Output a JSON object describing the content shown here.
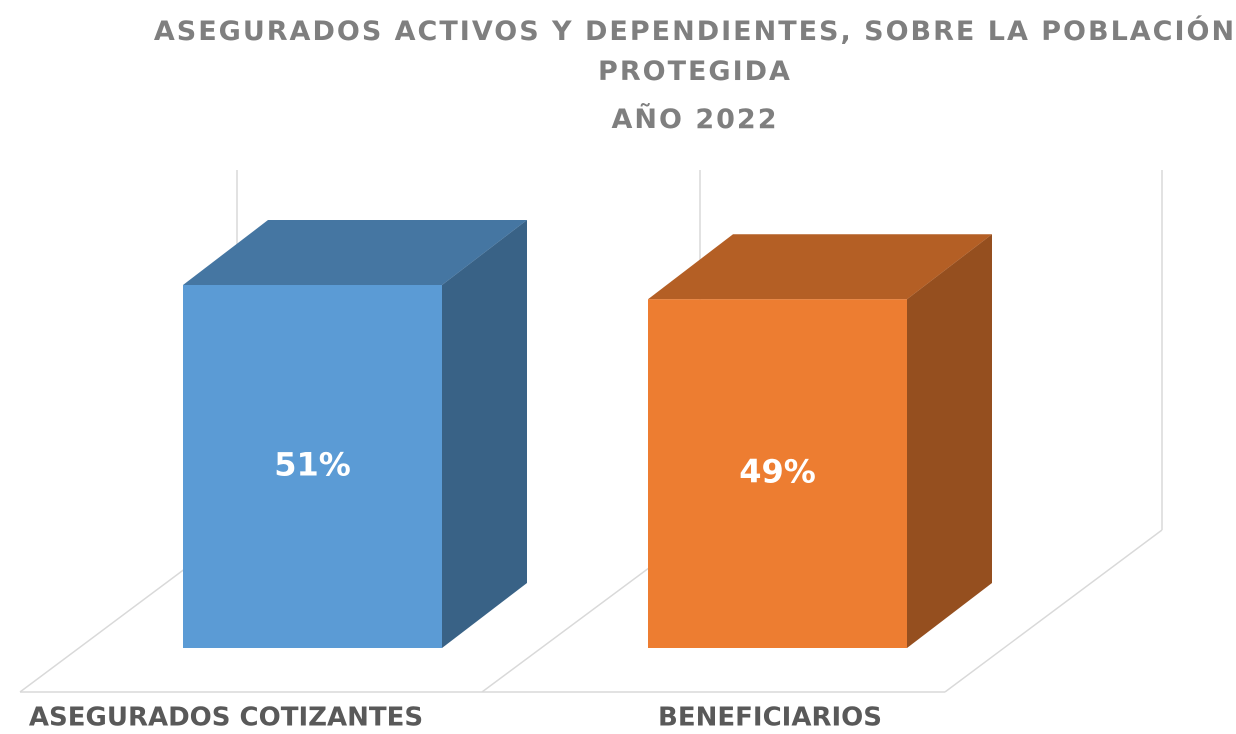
{
  "chart_data": {
    "type": "bar3d",
    "title": "ASEGURADOS ACTIVOS Y DEPENDIENTES, SOBRE LA POBLACIÓN PROTEGIDA",
    "subtitle": "AÑO 2022",
    "categories": [
      "ASEGURADOS COTIZANTES",
      "BENEFICIARIOS"
    ],
    "values": [
      51,
      49
    ],
    "value_labels": [
      "51%",
      "49%"
    ],
    "colors": [
      "#5b9bd5",
      "#ed7d31"
    ]
  }
}
